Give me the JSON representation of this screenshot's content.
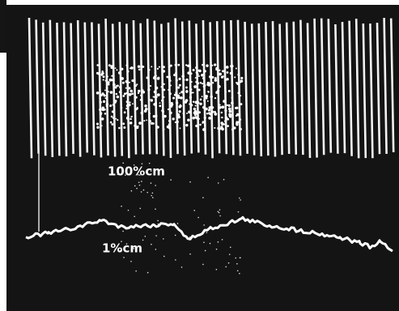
{
  "labels": {
    "upper": "100%cm",
    "lower": "1%cm"
  }
}
